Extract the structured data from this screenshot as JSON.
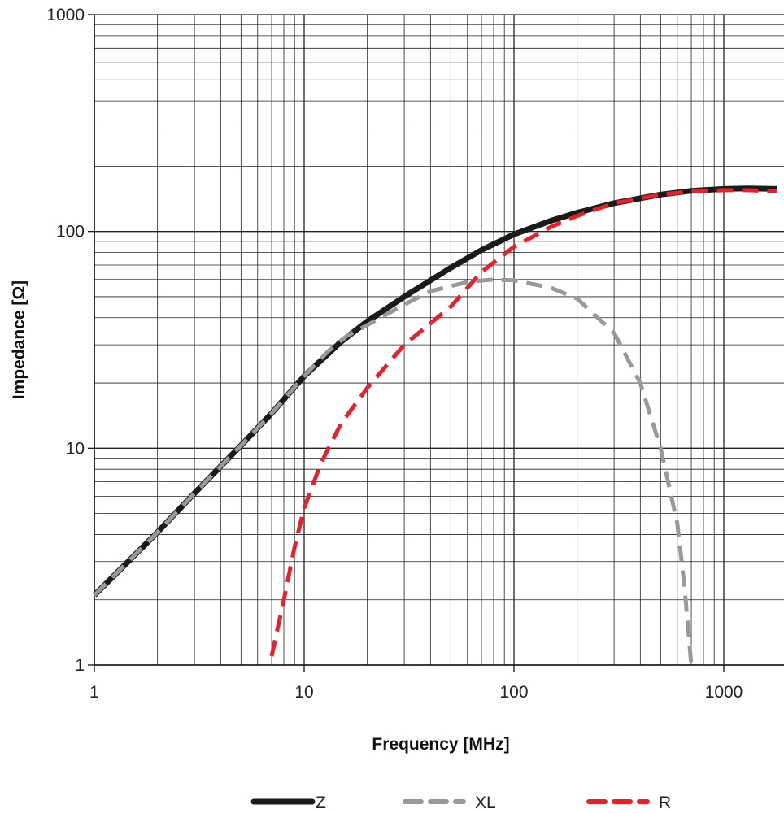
{
  "chart_data": {
    "type": "line",
    "x_scale": "log",
    "y_scale": "log",
    "xlim": [
      1,
      1800
    ],
    "ylim": [
      1,
      1000
    ],
    "xlabel": "Frequency [MHz]",
    "ylabel": "Impedance [Ω]",
    "x_ticks": [
      "1",
      "10",
      "100",
      "1000"
    ],
    "y_ticks": [
      "1",
      "10",
      "100",
      "1000"
    ],
    "grid": true,
    "legend_position": "bottom",
    "series": [
      {
        "name": "Z",
        "color": "#1a1a1a",
        "style": "solid",
        "x": [
          1,
          1.5,
          2,
          3,
          5,
          7,
          10,
          15,
          20,
          30,
          50,
          70,
          100,
          150,
          200,
          300,
          500,
          700,
          1000,
          1300,
          1800
        ],
        "y": [
          2.1,
          3.1,
          4.1,
          6.2,
          10.3,
          14.5,
          21.5,
          31,
          38.5,
          50,
          68,
          82,
          97,
          112,
          122,
          135,
          148,
          154,
          157,
          158,
          157
        ]
      },
      {
        "name": "XL",
        "color": "#999999",
        "style": "dashed",
        "x": [
          1,
          1.5,
          2,
          3,
          5,
          7,
          10,
          13,
          16,
          20,
          30,
          40,
          60,
          80,
          100,
          150,
          200,
          300,
          400,
          500,
          600,
          650,
          700
        ],
        "y": [
          2.1,
          3.1,
          4.1,
          6.2,
          10.3,
          14.5,
          21.5,
          28,
          33,
          37,
          46,
          53,
          58.5,
          60,
          59.5,
          55,
          49,
          34,
          20,
          10,
          4.5,
          2.3,
          1
        ]
      },
      {
        "name": "R",
        "color": "#e8202a",
        "style": "dashed",
        "x": [
          7,
          8,
          9,
          10,
          12,
          15,
          20,
          30,
          50,
          70,
          100,
          150,
          200,
          300,
          500,
          700,
          1000,
          1300,
          1800
        ],
        "y": [
          1.1,
          2,
          3.5,
          5.3,
          8.5,
          13,
          19,
          30,
          45,
          65,
          85,
          105,
          118,
          135,
          148,
          153,
          155,
          155,
          153
        ]
      }
    ]
  }
}
